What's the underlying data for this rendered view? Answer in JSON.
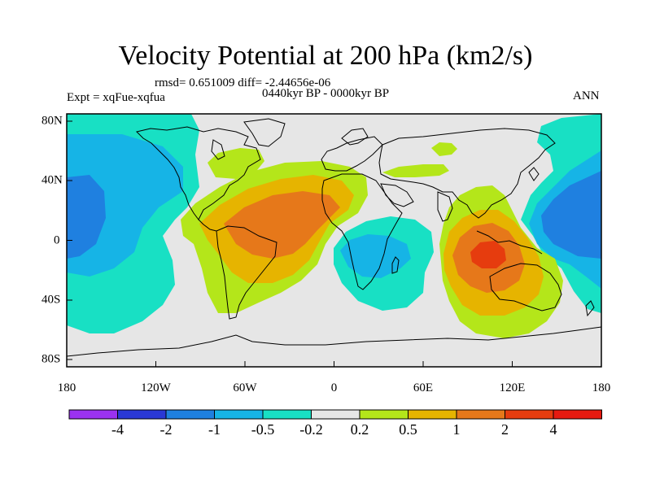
{
  "title": "Velocity Potential at 200 hPa (km2/s)",
  "stats": "rmsd= 0.651009 diff= -2.44656e-06",
  "period": "0440kyr BP - 0000kyr BP",
  "experiment": "Expt = xqFue-xqfua",
  "season": "ANN",
  "axes": {
    "x_labels": [
      "180",
      "120W",
      "60W",
      "0",
      "60E",
      "120E",
      "180"
    ],
    "y_labels": [
      "80N",
      "40N",
      "0",
      "40S",
      "80S"
    ]
  },
  "colorbar": {
    "labels": [
      "-4",
      "-2",
      "-1",
      "-0.5",
      "-0.2",
      "0.2",
      "0.5",
      "1",
      "2",
      "4"
    ],
    "colors": [
      "#9b32f0",
      "#2a38d6",
      "#1f80e0",
      "#16b4e6",
      "#18e0c4",
      "#e6e6e6",
      "#b4e61a",
      "#e6b400",
      "#e6781a",
      "#e63c0e",
      "#e61a10"
    ]
  },
  "palette": {
    "land_bg": "#e6e6e6",
    "neg_05": "#18e0c4",
    "neg_1": "#16b4e6",
    "neg_2": "#1f80e0",
    "pos_02": "#b4e61a",
    "pos_05": "#e6b400",
    "pos_1": "#e6781a",
    "pos_2": "#e63c0e"
  }
}
